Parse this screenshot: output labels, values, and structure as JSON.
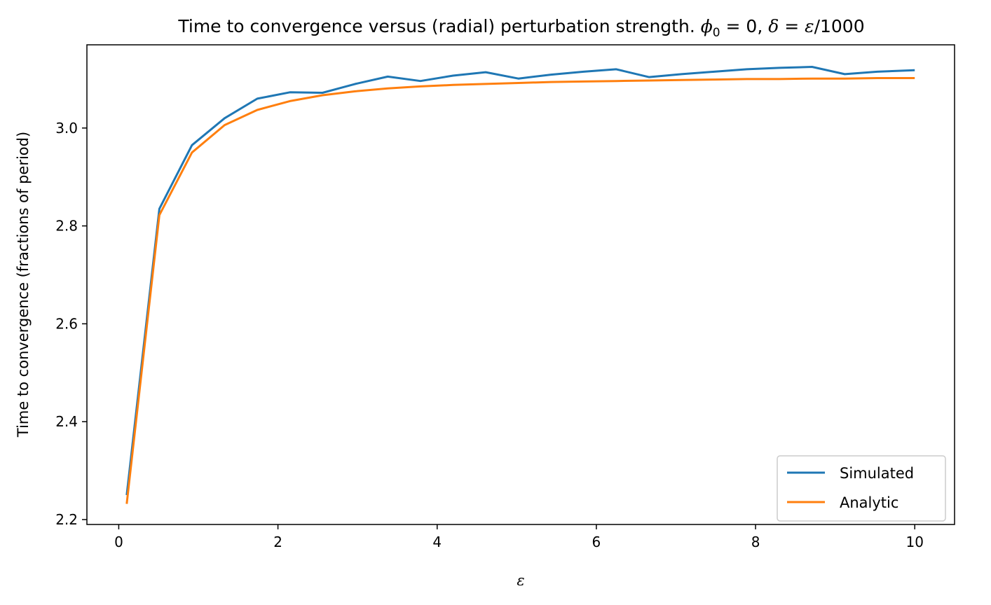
{
  "chart_data": {
    "type": "line",
    "title": {
      "prefix": "Time to convergence versus (radial) perturbation strength. ",
      "phi": "ϕ",
      "phi_sub": "0",
      "phi_eq": " = 0, ",
      "delta": "δ",
      "delta_eq": " = ",
      "eps": "ε",
      "suffix": "/1000"
    },
    "xlabel": "ε",
    "ylabel": "Time to convergence (fractions of period)",
    "xlim": [
      -0.4,
      10.5
    ],
    "ylim": [
      2.19,
      3.17
    ],
    "xticks": [
      0,
      2,
      4,
      6,
      8,
      10
    ],
    "xtick_labels": [
      "0",
      "2",
      "4",
      "6",
      "8",
      "10"
    ],
    "yticks": [
      2.2,
      2.4,
      2.6,
      2.8,
      3.0
    ],
    "ytick_labels": [
      "2.2",
      "2.4",
      "2.6",
      "2.8",
      "3.0"
    ],
    "grid": false,
    "legend_position": "bottom-right",
    "x": [
      0.1,
      0.51,
      0.92,
      1.33,
      1.74,
      2.15,
      2.56,
      2.97,
      3.38,
      3.79,
      4.2,
      4.61,
      5.02,
      5.43,
      5.84,
      6.25,
      6.66,
      7.07,
      7.48,
      7.89,
      8.3,
      8.71,
      9.12,
      9.53,
      10.0
    ],
    "series": [
      {
        "name": "Simulated",
        "color": "#1f77b4",
        "values": [
          2.25,
          2.835,
          2.965,
          3.02,
          3.06,
          3.073,
          3.072,
          3.09,
          3.105,
          3.096,
          3.107,
          3.114,
          3.101,
          3.109,
          3.115,
          3.12,
          3.104,
          3.11,
          3.115,
          3.12,
          3.123,
          3.125,
          3.11,
          3.115,
          3.118
        ]
      },
      {
        "name": "Analytic",
        "color": "#ff7f0e",
        "values": [
          2.232,
          2.822,
          2.95,
          3.006,
          3.037,
          3.055,
          3.067,
          3.075,
          3.081,
          3.085,
          3.088,
          3.09,
          3.092,
          3.094,
          3.095,
          3.096,
          3.097,
          3.098,
          3.099,
          3.1,
          3.1,
          3.101,
          3.101,
          3.102,
          3.102
        ]
      }
    ]
  }
}
